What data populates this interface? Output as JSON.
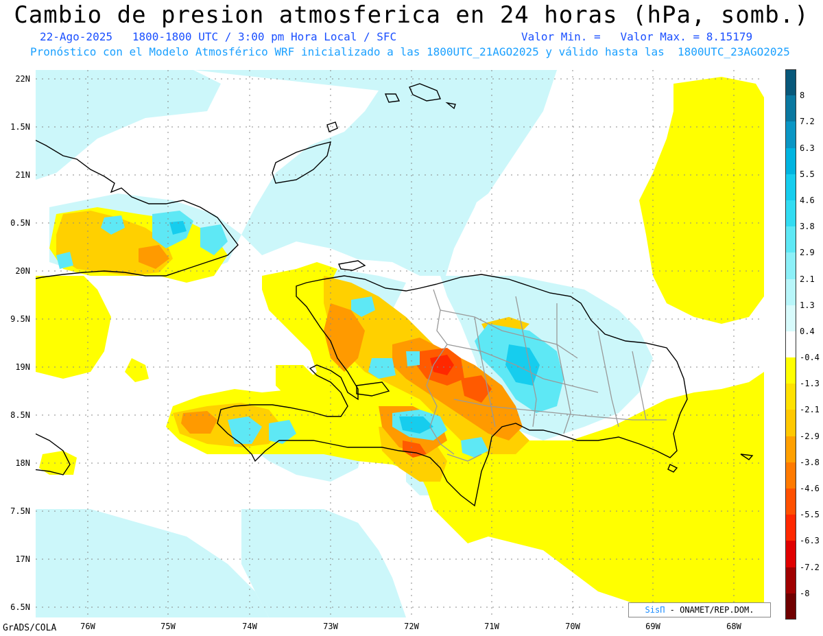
{
  "header": {
    "title": "Cambio de presion atmosferica en 24 horas (hPa, somb.)",
    "line1_left": "22-Ago-2025   1800-1800 UTC / 3:00 pm Hora Local / SFC",
    "line1_right": "Valor Min. =   Valor Max. = 8.15179",
    "line2": "Pronóstico con el Modelo Atmosférico WRF inicializado a las 1800UTC_21AGO2025 y válido hasta las  1800UTC_23AGO2025"
  },
  "axes": {
    "y_labels": [
      "22N",
      "1.5N",
      "21N",
      "0.5N",
      "20N",
      "9.5N",
      "19N",
      "8.5N",
      "18N",
      "7.5N",
      "17N",
      "6.5N"
    ],
    "x_labels": [
      "76W",
      "75W",
      "74W",
      "73W",
      "72W",
      "71W",
      "70W",
      "69W",
      "68W"
    ]
  },
  "colorbar": {
    "labels": [
      "8",
      "7.2",
      "6.3",
      "5.5",
      "4.6",
      "3.8",
      "2.9",
      "2.1",
      "1.3",
      "0.4",
      "-0.4",
      "-1.3",
      "-2.1",
      "-2.9",
      "-3.8",
      "-4.6",
      "-5.5",
      "-6.3",
      "-7.2",
      "-8"
    ],
    "colors": [
      "#08587a",
      "#0a78a0",
      "#0a96c4",
      "#00b4e0",
      "#16cdee",
      "#32dcf2",
      "#5ee8f5",
      "#8cf0f8",
      "#b8f6fa",
      "#d8fbfc",
      "#ffffff",
      "#ffff00",
      "#ffe100",
      "#ffc800",
      "#ffa000",
      "#ff7a00",
      "#ff5000",
      "#ff2800",
      "#e00000",
      "#a00000",
      "#700000"
    ]
  },
  "credit": {
    "brand": "SisΠ",
    "text": " - ONAMET/REP.DOM."
  },
  "footer": {
    "grads": "GrADS/COLA"
  }
}
